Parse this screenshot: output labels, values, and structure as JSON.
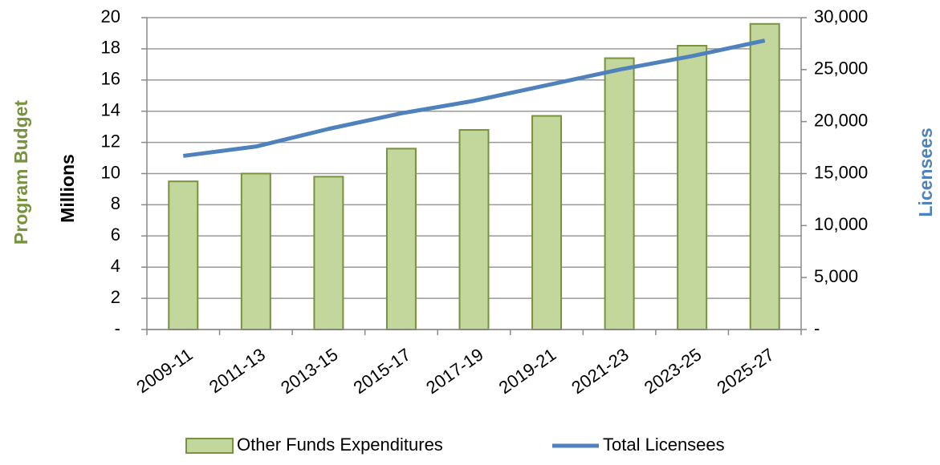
{
  "chart_data": {
    "type": "bar",
    "categories": [
      "2009-11",
      "2011-13",
      "2013-15",
      "2015-17",
      "2017-19",
      "2019-21",
      "2021-23",
      "2023-25",
      "2025-27"
    ],
    "series": [
      {
        "name": "Other Funds Expenditures",
        "type": "bar",
        "color": "#c3d69b",
        "edge_color": "#77933c",
        "values": [
          9.5,
          10.0,
          9.8,
          11.6,
          12.8,
          13.7,
          17.4,
          18.2,
          19.6
        ]
      },
      {
        "name": "Total Licensees",
        "type": "line",
        "axis": "y2",
        "color": "#4f81bd",
        "values": [
          16700,
          17600,
          19300,
          20800,
          22000,
          23500,
          25000,
          26300,
          27800
        ]
      }
    ],
    "ylabel": "Program Budget",
    "ylabel_units": "Millions",
    "y2label": "Licensees",
    "ylabel_color": "#77933c",
    "y2label_color": "#4f81bd",
    "ylim": [
      0,
      20
    ],
    "yticks": [
      {
        "value": 0,
        "label": "-"
      },
      2,
      4,
      6,
      8,
      10,
      12,
      14,
      16,
      18,
      20
    ],
    "y2lim": [
      0,
      30000
    ],
    "y2ticks": [
      {
        "value": 0,
        "label": "-"
      },
      {
        "value": 5000,
        "label": "5,000"
      },
      {
        "value": 10000,
        "label": "10,000"
      },
      {
        "value": 15000,
        "label": "15,000"
      },
      {
        "value": 20000,
        "label": "20,000"
      },
      {
        "value": 25000,
        "label": "25,000"
      },
      {
        "value": 30000,
        "label": "30,000"
      }
    ],
    "grid": true,
    "legend": "bottom"
  }
}
